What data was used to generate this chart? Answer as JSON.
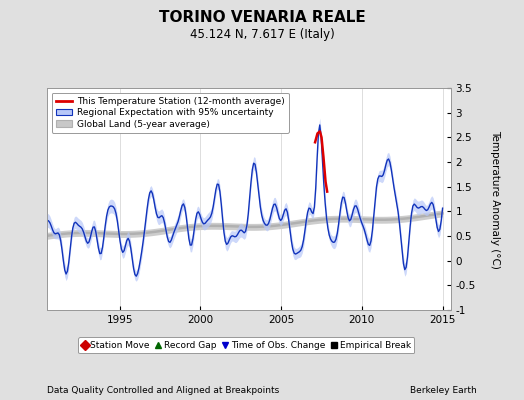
{
  "title": "TORINO VENARIA REALE",
  "subtitle": "45.124 N, 7.617 E (Italy)",
  "ylabel": "Temperature Anomaly (°C)",
  "xlabel_left": "Data Quality Controlled and Aligned at Breakpoints",
  "xlabel_right": "Berkeley Earth",
  "ylim": [
    -1.0,
    3.5
  ],
  "xlim": [
    1990.5,
    2015.5
  ],
  "xticks": [
    1995,
    2000,
    2005,
    2010,
    2015
  ],
  "yticks_right": [
    -1,
    -0.5,
    0,
    0.5,
    1,
    1.5,
    2,
    2.5,
    3,
    3.5
  ],
  "bg_color": "#e0e0e0",
  "plot_bg_color": "#ffffff",
  "title_fontsize": 11,
  "subtitle_fontsize": 8.5,
  "legend_entries": [
    "This Temperature Station (12-month average)",
    "Regional Expectation with 95% uncertainty",
    "Global Land (5-year average)"
  ],
  "bottom_legend": [
    {
      "marker": "D",
      "color": "#cc0000",
      "label": "Station Move"
    },
    {
      "marker": "^",
      "color": "#006600",
      "label": "Record Gap"
    },
    {
      "marker": "v",
      "color": "#0000cc",
      "label": "Time of Obs. Change"
    },
    {
      "marker": "s",
      "color": "#000000",
      "label": "Empirical Break"
    }
  ]
}
